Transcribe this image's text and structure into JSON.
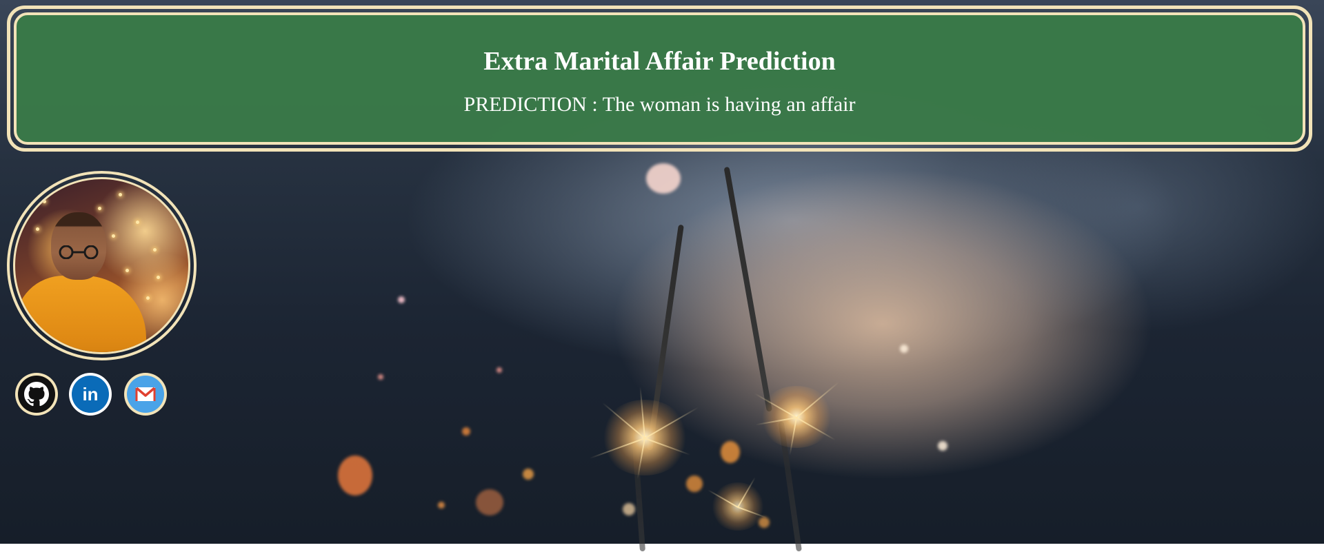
{
  "header": {
    "title": "Extra Marital Affair Prediction",
    "prediction_text": "PREDICTION : The woman is having an affair"
  },
  "profile": {
    "avatar": "profile-photo"
  },
  "social_links": [
    {
      "name": "github",
      "icon": "github-icon"
    },
    {
      "name": "linkedin",
      "icon": "linkedin-icon",
      "glyph": "in"
    },
    {
      "name": "gmail",
      "icon": "gmail-icon"
    }
  ],
  "colors": {
    "header_bg": "#3a7a48",
    "border_cream": "#f2e3b8",
    "text": "#ffffff",
    "linkedin_blue": "#0a6bb8",
    "gmail_blue": "#4aa3e8"
  }
}
